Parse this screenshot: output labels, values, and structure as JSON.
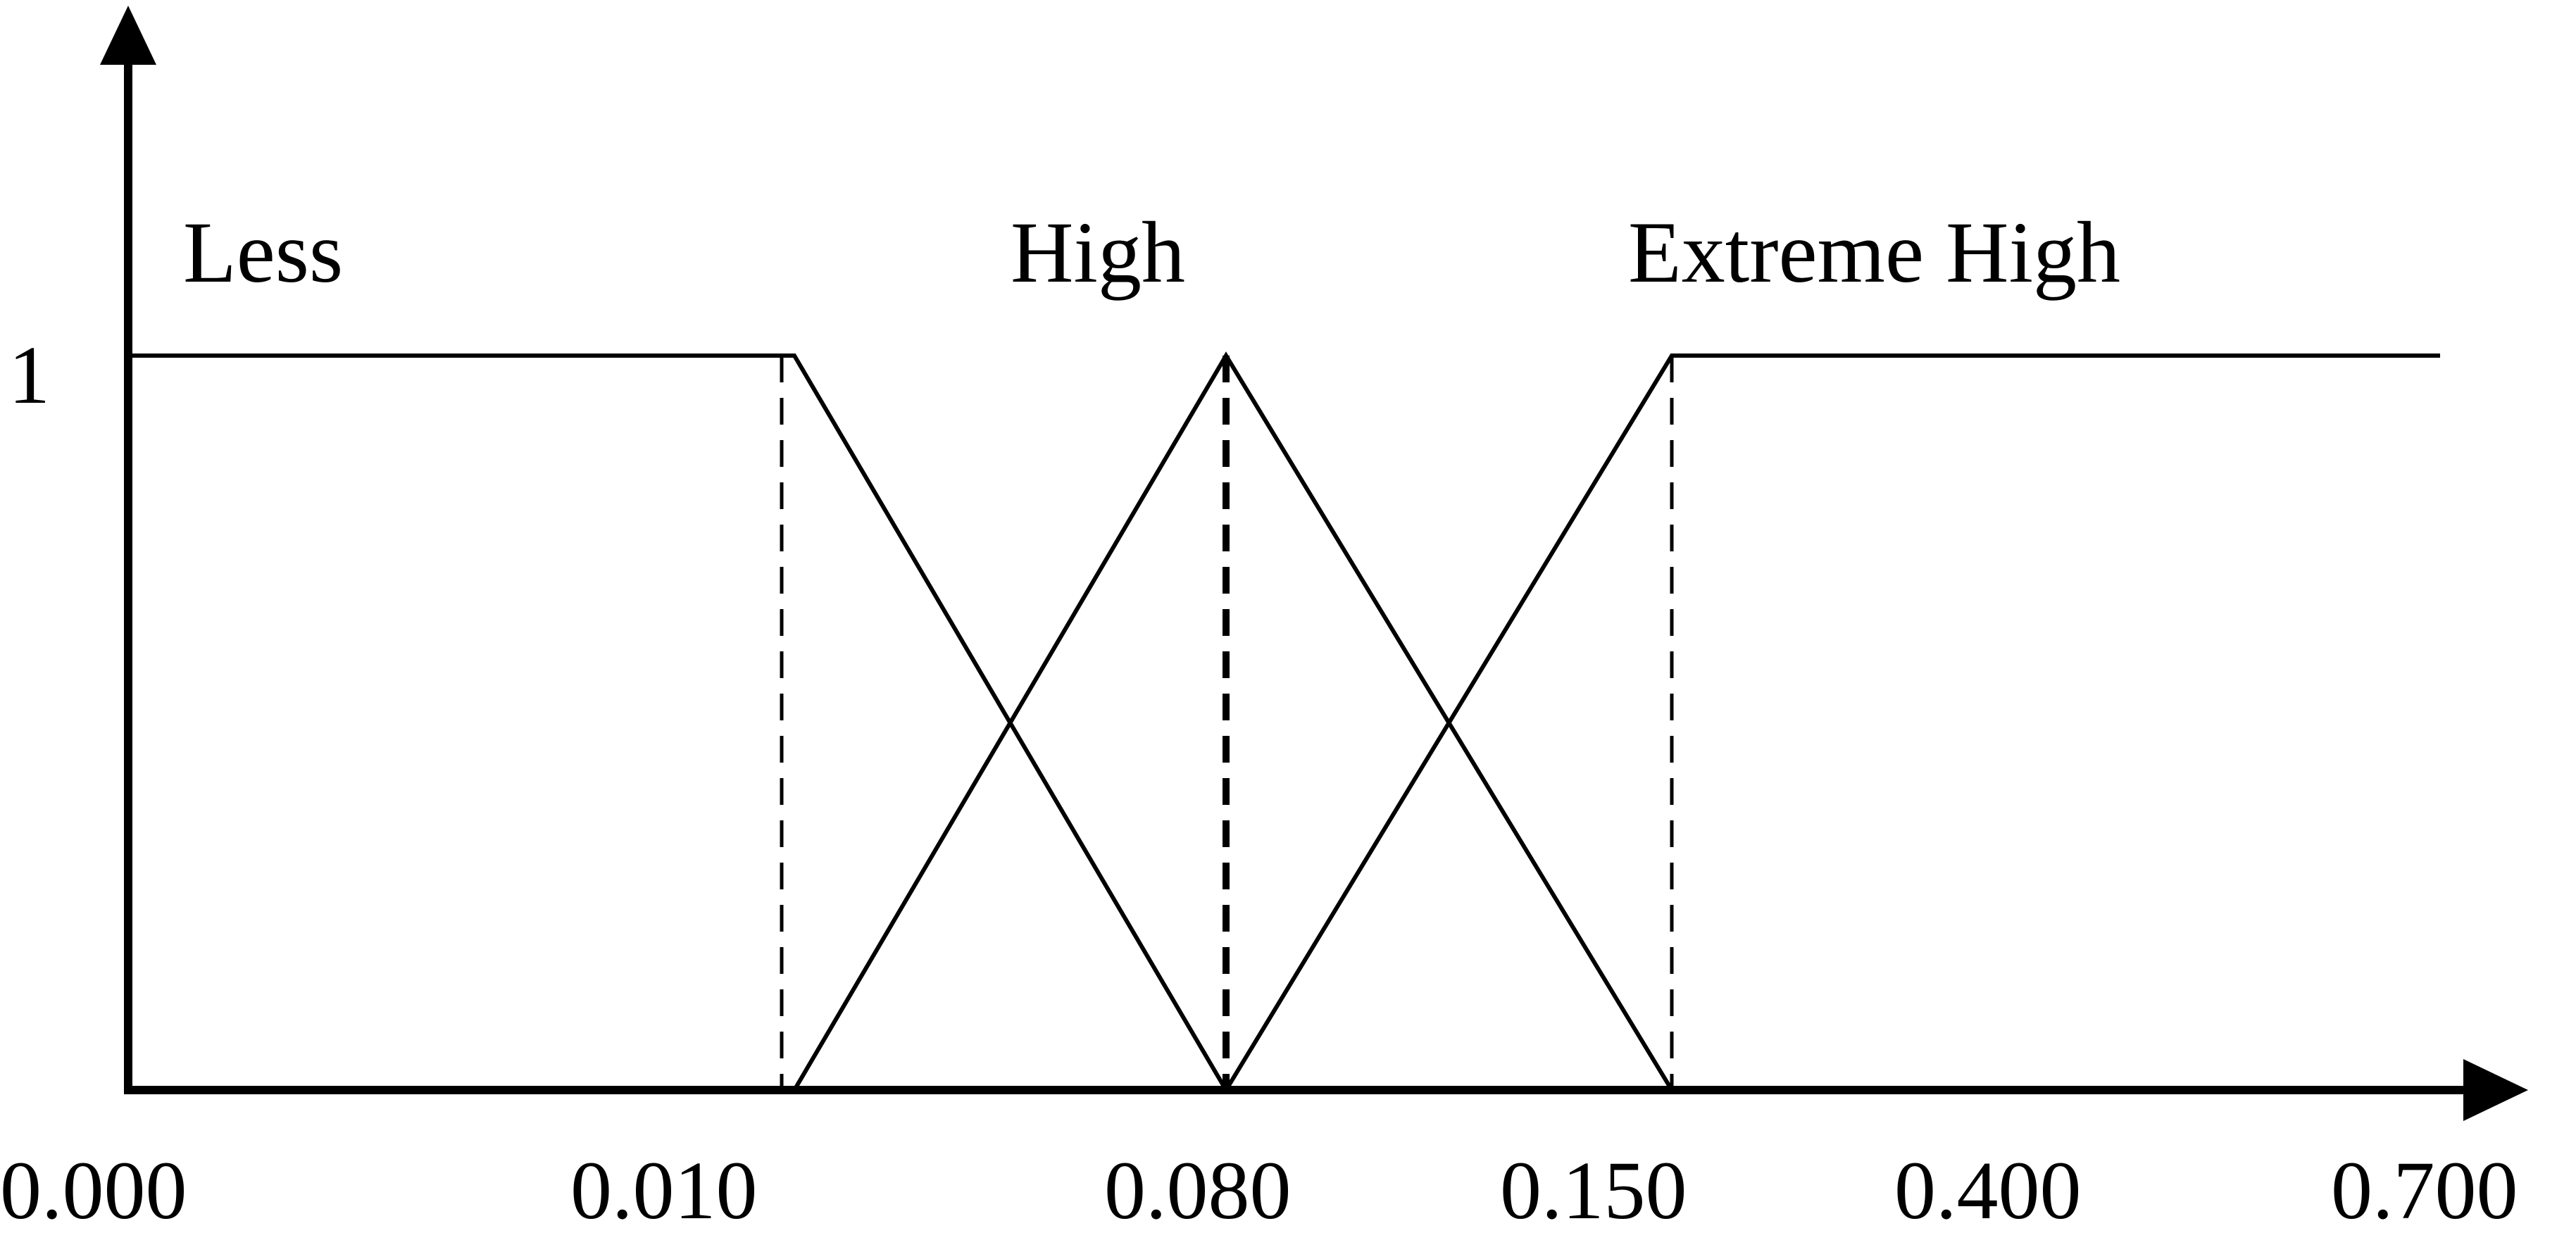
{
  "diagram": {
    "type": "membership-function",
    "y_tick_label": "1",
    "x_tick_labels": [
      "0.000",
      "0.010",
      "0.080",
      "0.150",
      "0.400",
      "0.700"
    ],
    "sets": [
      {
        "label": "Less"
      },
      {
        "label": "High"
      },
      {
        "label": "Extreme High"
      }
    ],
    "line_color": "#000000",
    "background_color": "#ffffff"
  }
}
